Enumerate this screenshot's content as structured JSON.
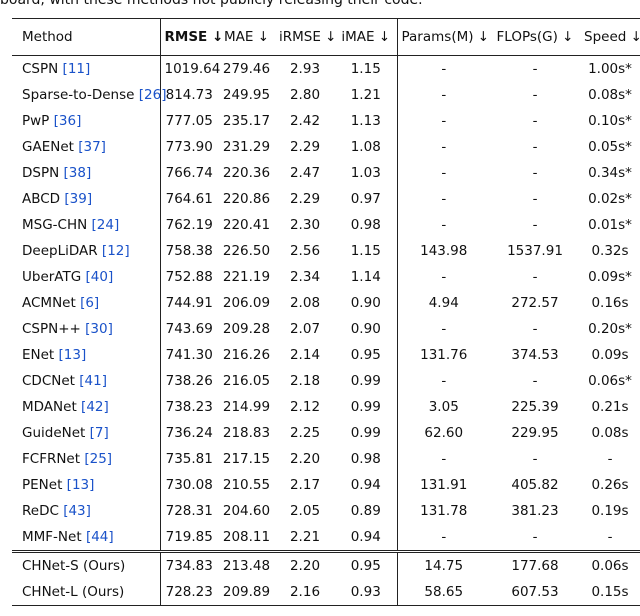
{
  "caption_fragment": "board, with these methods not publicly releasing their code.",
  "table": {
    "header": [
      "Method",
      "RMSE ↓",
      "MAE ↓",
      "iRMSE ↓",
      "iMAE ↓",
      "Params(M) ↓",
      "FLOPs(G) ↓",
      "Speed ↓"
    ],
    "rows": [
      {
        "method": "CSPN",
        "ref": "[11]",
        "cells": [
          "1019.64",
          "279.46",
          "2.93",
          "1.15",
          "-",
          "-",
          "1.00s*"
        ]
      },
      {
        "method": "Sparse-to-Dense",
        "ref": "[26]",
        "cells": [
          "814.73",
          "249.95",
          "2.80",
          "1.21",
          "-",
          "-",
          "0.08s*"
        ]
      },
      {
        "method": "PwP",
        "ref": "[36]",
        "cells": [
          "777.05",
          "235.17",
          "2.42",
          "1.13",
          "-",
          "-",
          "0.10s*"
        ]
      },
      {
        "method": "GAENet",
        "ref": "[37]",
        "cells": [
          "773.90",
          "231.29",
          "2.29",
          "1.08",
          "-",
          "-",
          "0.05s*"
        ]
      },
      {
        "method": "DSPN",
        "ref": "[38]",
        "cells": [
          "766.74",
          "220.36",
          "2.47",
          "1.03",
          "-",
          "-",
          "0.34s*"
        ]
      },
      {
        "method": "ABCD",
        "ref": "[39]",
        "cells": [
          "764.61",
          "220.86",
          "2.29",
          "0.97",
          "-",
          "-",
          "0.02s*"
        ]
      },
      {
        "method": "MSG-CHN",
        "ref": "[24]",
        "cells": [
          "762.19",
          "220.41",
          "2.30",
          "0.98",
          "-",
          "-",
          "0.01s*"
        ]
      },
      {
        "method": "DeepLiDAR",
        "ref": "[12]",
        "cells": [
          "758.38",
          "226.50",
          "2.56",
          "1.15",
          "143.98",
          "1537.91",
          "0.32s"
        ]
      },
      {
        "method": "UberATG",
        "ref": "[40]",
        "cells": [
          "752.88",
          "221.19",
          "2.34",
          "1.14",
          "-",
          "-",
          "0.09s*"
        ]
      },
      {
        "method": "ACMNet",
        "ref": "[6]",
        "cells": [
          "744.91",
          "206.09",
          "2.08",
          "0.90",
          "4.94",
          "272.57",
          "0.16s"
        ]
      },
      {
        "method": "CSPN++",
        "ref": "[30]",
        "cells": [
          "743.69",
          "209.28",
          "2.07",
          "0.90",
          "-",
          "-",
          "0.20s*"
        ]
      },
      {
        "method": "ENet",
        "ref": "[13]",
        "cells": [
          "741.30",
          "216.26",
          "2.14",
          "0.95",
          "131.76",
          "374.53",
          "0.09s"
        ]
      },
      {
        "method": "CDCNet",
        "ref": "[41]",
        "cells": [
          "738.26",
          "216.05",
          "2.18",
          "0.99",
          "-",
          "-",
          "0.06s*"
        ]
      },
      {
        "method": "MDANet",
        "ref": "[42]",
        "cells": [
          "738.23",
          "214.99",
          "2.12",
          "0.99",
          "3.05",
          "225.39",
          "0.21s"
        ]
      },
      {
        "method": "GuideNet",
        "ref": "[7]",
        "cells": [
          "736.24",
          "218.83",
          "2.25",
          "0.99",
          "62.60",
          "229.95",
          "0.08s"
        ]
      },
      {
        "method": "FCFRNet",
        "ref": "[25]",
        "cells": [
          "735.81",
          "217.15",
          "2.20",
          "0.98",
          "-",
          "-",
          "-"
        ]
      },
      {
        "method": "PENet",
        "ref": "[13]",
        "cells": [
          "730.08",
          "210.55",
          "2.17",
          "0.94",
          "131.91",
          "405.82",
          "0.26s"
        ]
      },
      {
        "method": "ReDC",
        "ref": "[43]",
        "cells": [
          "728.31",
          "204.60",
          "2.05",
          "0.89",
          "131.78",
          "381.23",
          "0.19s"
        ]
      },
      {
        "method": "MMF-Net",
        "ref": "[44]",
        "cells": [
          "719.85",
          "208.11",
          "2.21",
          "0.94",
          "-",
          "-",
          "-"
        ]
      }
    ],
    "ours_rows": [
      {
        "method": "CHNet-S (Ours)",
        "cells": [
          "734.83",
          "213.48",
          "2.20",
          "0.95",
          "14.75",
          "177.68",
          "0.06s"
        ]
      },
      {
        "method": "CHNet-L (Ours)",
        "cells": [
          "728.23",
          "209.89",
          "2.16",
          "0.93",
          "58.65",
          "607.53",
          "0.15s"
        ]
      }
    ]
  }
}
